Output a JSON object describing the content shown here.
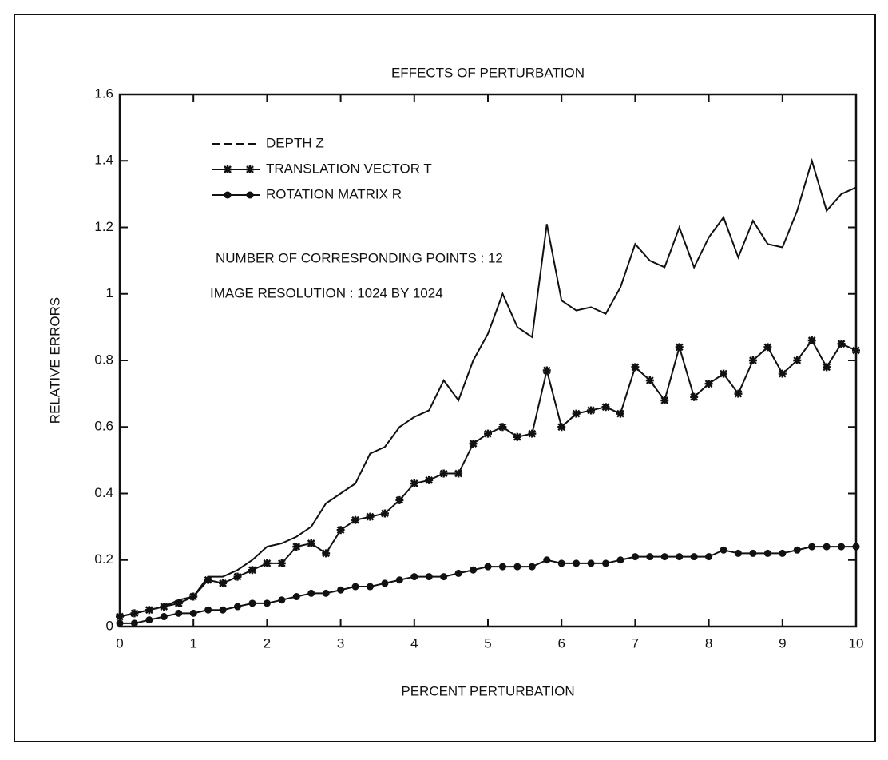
{
  "chart_data": {
    "type": "line",
    "title": "EFFECTS OF PERTURBATION",
    "xlabel": "PERCENT PERTURBATION",
    "ylabel": "RELATIVE ERRORS",
    "annotations": [
      "NUMBER OF CORRESPONDING POINTS : 12",
      "IMAGE RESOLUTION : 1024 BY 1024"
    ],
    "x": [
      0,
      0.2,
      0.4,
      0.6,
      0.8,
      1,
      1.2,
      1.4,
      1.6,
      1.8,
      2,
      2.2,
      2.4,
      2.6,
      2.8,
      3,
      3.2,
      3.4,
      3.6,
      3.8,
      4,
      4.2,
      4.4,
      4.6,
      4.8,
      5,
      5.2,
      5.4,
      5.6,
      5.8,
      6,
      6.2,
      6.4,
      6.6,
      6.8,
      7,
      7.2,
      7.4,
      7.6,
      7.8,
      8,
      8.2,
      8.4,
      8.6,
      8.8,
      9,
      9.2,
      9.4,
      9.6,
      9.8,
      10
    ],
    "series": [
      {
        "name": "DEPTH Z",
        "color": "#111111",
        "marker": "none",
        "values": [
          0.03,
          0.04,
          0.05,
          0.06,
          0.08,
          0.09,
          0.15,
          0.15,
          0.17,
          0.2,
          0.24,
          0.25,
          0.27,
          0.3,
          0.37,
          0.4,
          0.43,
          0.52,
          0.54,
          0.6,
          0.63,
          0.65,
          0.74,
          0.68,
          0.8,
          0.88,
          1.0,
          0.9,
          0.87,
          1.21,
          0.98,
          0.95,
          0.96,
          0.94,
          1.02,
          1.15,
          1.1,
          1.08,
          1.2,
          1.08,
          1.17,
          1.23,
          1.11,
          1.22,
          1.15,
          1.14,
          1.25,
          1.4,
          1.25,
          1.3,
          1.32
        ]
      },
      {
        "name": "TRANSLATION VECTOR T",
        "color": "#111111",
        "marker": "star",
        "values": [
          0.03,
          0.04,
          0.05,
          0.06,
          0.07,
          0.09,
          0.14,
          0.13,
          0.15,
          0.17,
          0.19,
          0.19,
          0.24,
          0.25,
          0.22,
          0.29,
          0.32,
          0.33,
          0.34,
          0.38,
          0.43,
          0.44,
          0.46,
          0.46,
          0.55,
          0.58,
          0.6,
          0.57,
          0.58,
          0.77,
          0.6,
          0.64,
          0.65,
          0.66,
          0.64,
          0.78,
          0.74,
          0.68,
          0.84,
          0.69,
          0.73,
          0.76,
          0.7,
          0.8,
          0.84,
          0.76,
          0.8,
          0.86,
          0.78,
          0.85,
          0.83
        ]
      },
      {
        "name": "ROTATION MATRIX R",
        "color": "#111111",
        "marker": "circle",
        "values": [
          0.01,
          0.01,
          0.02,
          0.03,
          0.04,
          0.04,
          0.05,
          0.05,
          0.06,
          0.07,
          0.07,
          0.08,
          0.09,
          0.1,
          0.1,
          0.11,
          0.12,
          0.12,
          0.13,
          0.14,
          0.15,
          0.15,
          0.15,
          0.16,
          0.17,
          0.18,
          0.18,
          0.18,
          0.18,
          0.2,
          0.19,
          0.19,
          0.19,
          0.19,
          0.2,
          0.21,
          0.21,
          0.21,
          0.21,
          0.21,
          0.21,
          0.23,
          0.22,
          0.22,
          0.22,
          0.22,
          0.23,
          0.24,
          0.24,
          0.24,
          0.24
        ]
      }
    ],
    "xlim": [
      0,
      10
    ],
    "xticks": [
      0,
      1,
      2,
      3,
      4,
      5,
      6,
      7,
      8,
      9,
      10
    ],
    "ylim": [
      0,
      1.6
    ],
    "yticks": [
      0,
      0.2,
      0.4,
      0.6,
      0.8,
      1,
      1.2,
      1.4,
      1.6
    ],
    "grid": false,
    "legend": "upper left"
  }
}
